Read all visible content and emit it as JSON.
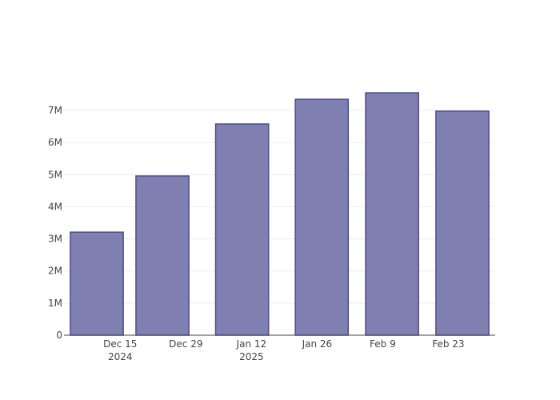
{
  "chart_data": {
    "type": "bar",
    "x": [
      "2024-12-10",
      "2024-12-24",
      "2025-01-10",
      "2025-01-27",
      "2025-02-11",
      "2025-02-26"
    ],
    "values": [
      3210000,
      4960000,
      6580000,
      7350000,
      7550000,
      6980000
    ],
    "color": "#7f7fb1",
    "edge_color": "#4d4d8d",
    "xlim": [
      "2024-12-03",
      "2025-03-05"
    ],
    "xticks": [
      {
        "value": "2024-12-15",
        "label": "Dec 15\n2024"
      },
      {
        "value": "2024-12-29",
        "label": "Dec 29"
      },
      {
        "value": "2025-01-12",
        "label": "Jan 12\n2025"
      },
      {
        "value": "2025-01-26",
        "label": "Jan 26"
      },
      {
        "value": "2025-02-09",
        "label": "Feb 9"
      },
      {
        "value": "2025-02-23",
        "label": "Feb 23"
      }
    ],
    "ylim": [
      0,
      7950000
    ],
    "yticks": [
      0,
      {
        "value": 1000000,
        "label": "1M"
      },
      {
        "value": 2000000,
        "label": "2M"
      },
      {
        "value": 3000000,
        "label": "3M"
      },
      {
        "value": 4000000,
        "label": "4M"
      },
      {
        "value": 5000000,
        "label": "5M"
      },
      {
        "value": 6000000,
        "label": "6M"
      },
      {
        "value": 7000000,
        "label": "7M"
      }
    ],
    "grid": true
  }
}
